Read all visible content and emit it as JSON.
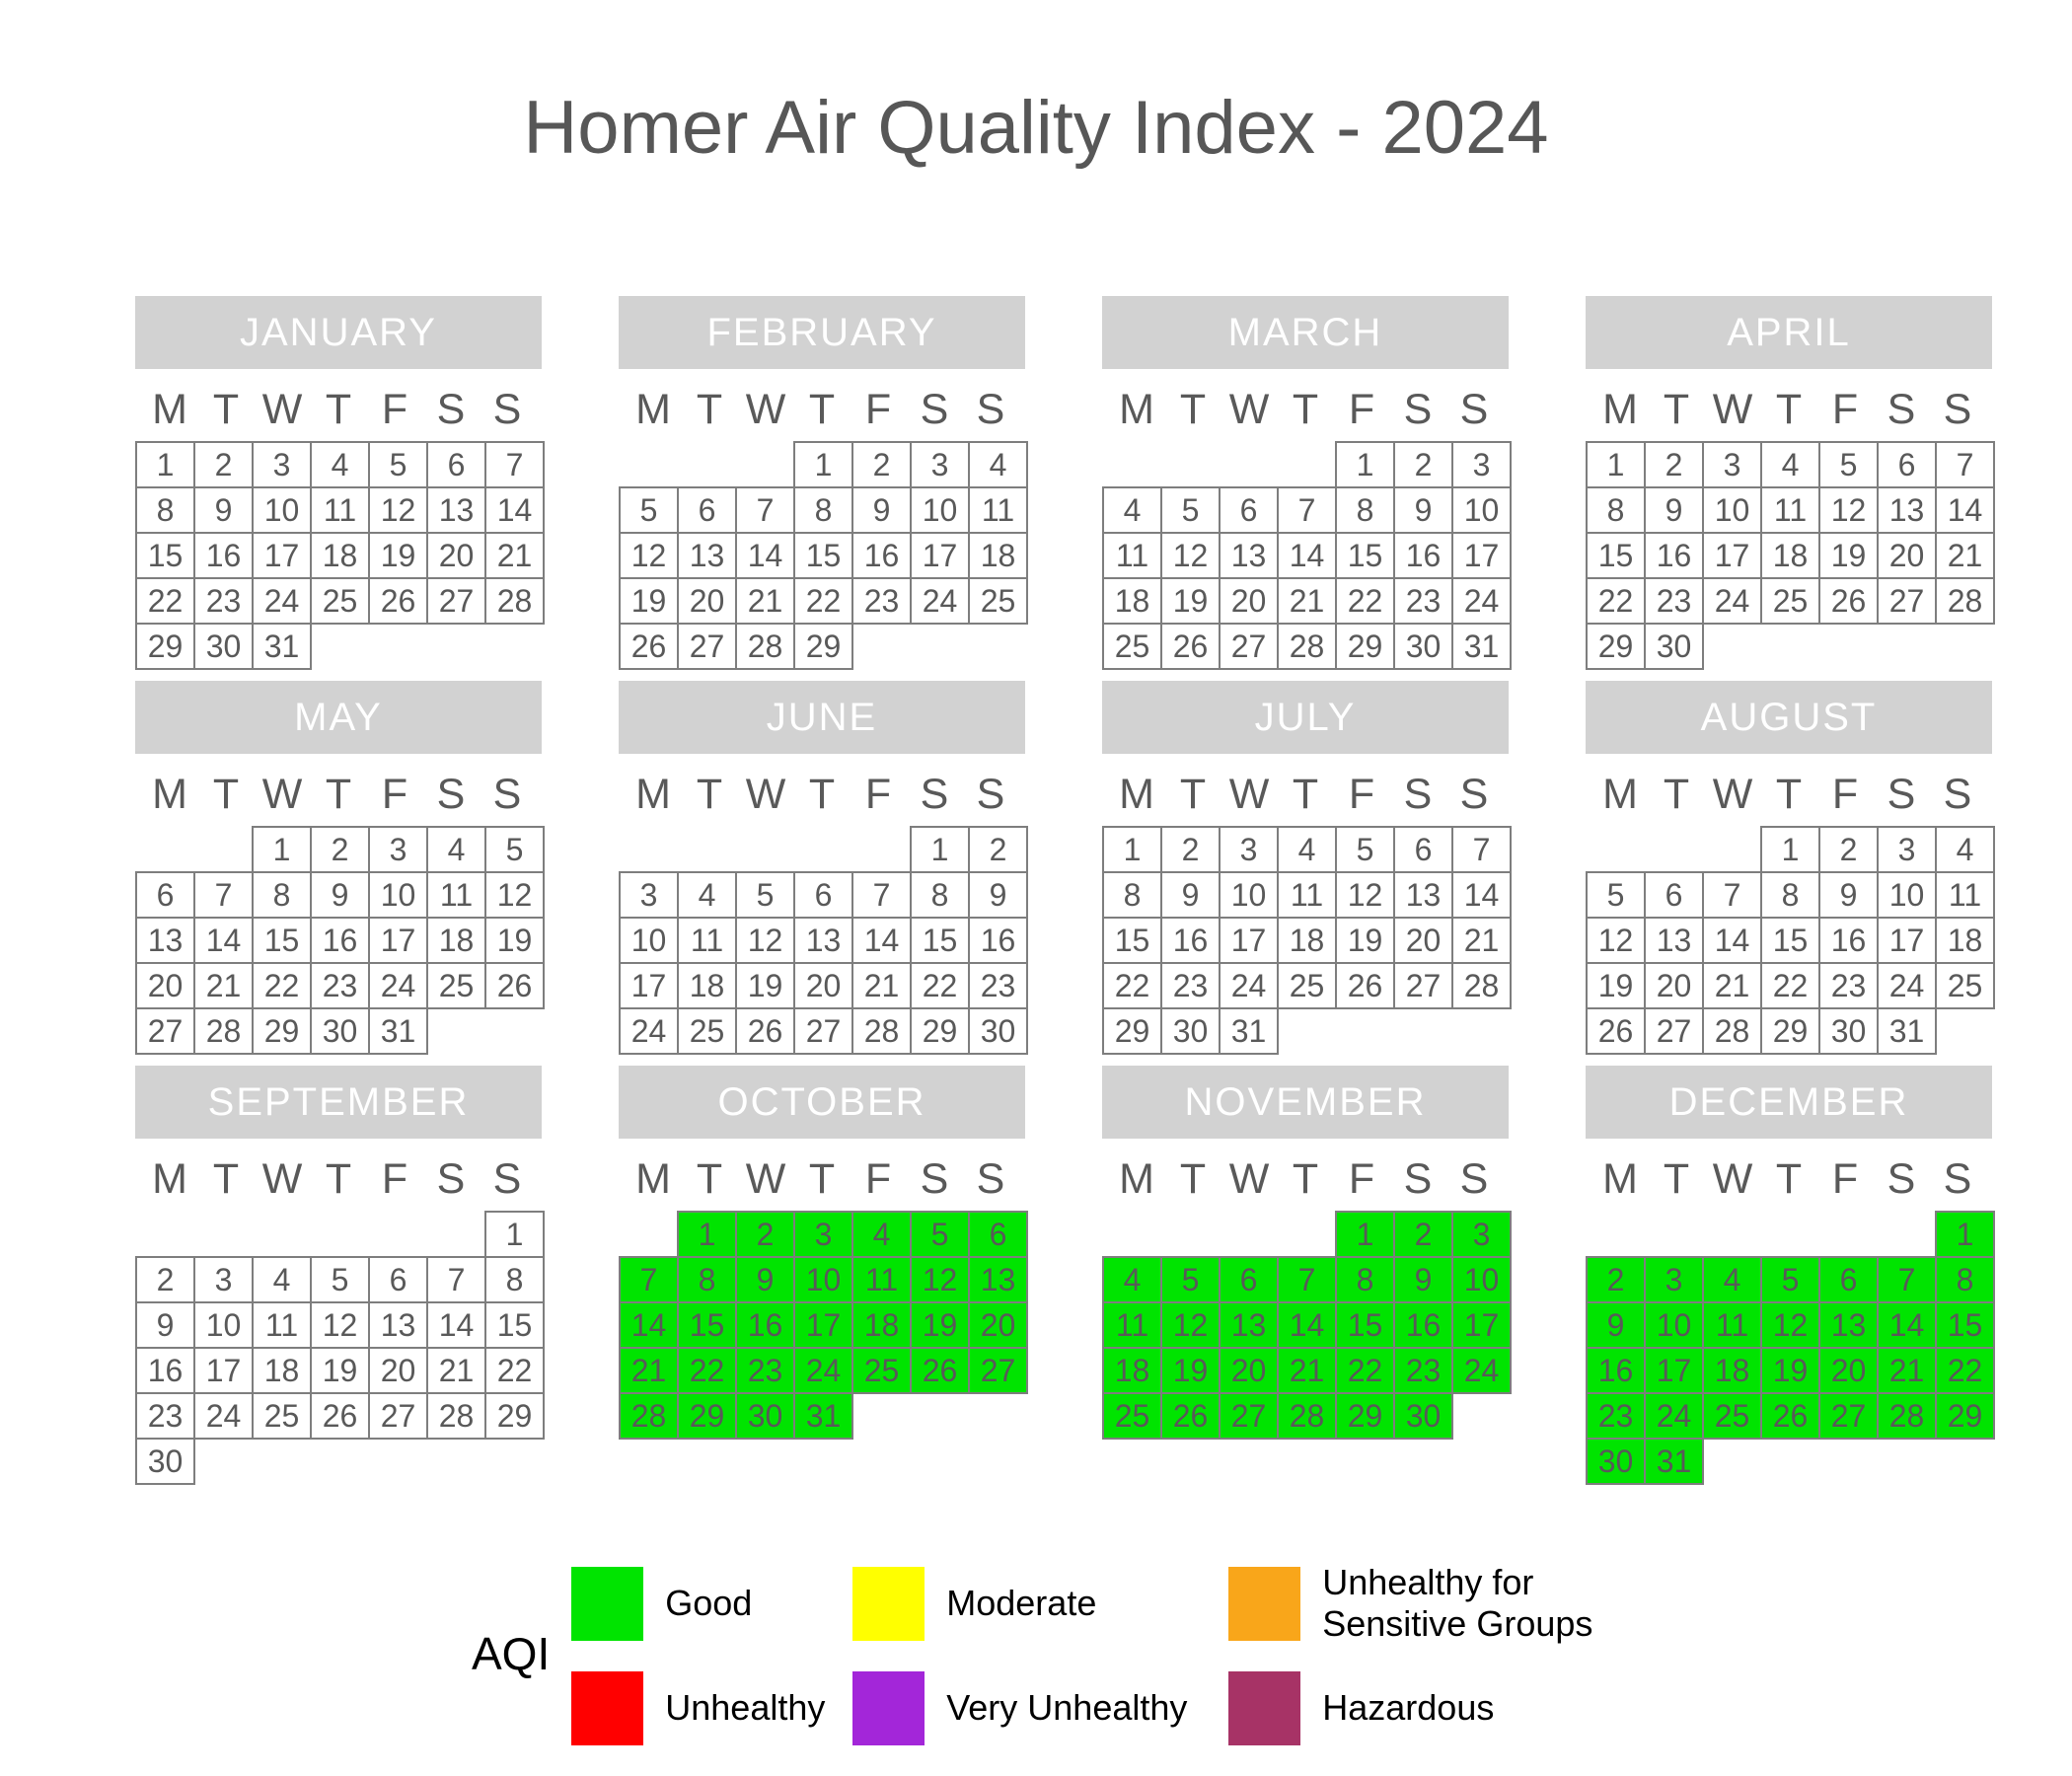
{
  "title": "Homer Air Quality Index - 2024",
  "weekdays": [
    "M",
    "T",
    "W",
    "T",
    "F",
    "S",
    "S"
  ],
  "aqi_colors": {
    "Good": "#00E400",
    "Moderate": "#FFFF00",
    "Unhealthy for Sensitive Groups": "#F9A61A",
    "Unhealthy": "#FF0000",
    "Very Unhealthy": "#A326D9",
    "Hazardous": "#A73366"
  },
  "months": [
    {
      "name": "JANUARY",
      "aqi": null,
      "weeks": [
        [
          1,
          2,
          3,
          4,
          5,
          6,
          7
        ],
        [
          8,
          9,
          10,
          11,
          12,
          13,
          14
        ],
        [
          15,
          16,
          17,
          18,
          19,
          20,
          21
        ],
        [
          22,
          23,
          24,
          25,
          26,
          27,
          28
        ],
        [
          29,
          30,
          31,
          0,
          0,
          0,
          0
        ]
      ]
    },
    {
      "name": "FEBRUARY",
      "aqi": null,
      "weeks": [
        [
          0,
          0,
          0,
          1,
          2,
          3,
          4
        ],
        [
          5,
          6,
          7,
          8,
          9,
          10,
          11
        ],
        [
          12,
          13,
          14,
          15,
          16,
          17,
          18
        ],
        [
          19,
          20,
          21,
          22,
          23,
          24,
          25
        ],
        [
          26,
          27,
          28,
          29,
          0,
          0,
          0
        ]
      ]
    },
    {
      "name": "MARCH",
      "aqi": null,
      "weeks": [
        [
          0,
          0,
          0,
          0,
          1,
          2,
          3
        ],
        [
          4,
          5,
          6,
          7,
          8,
          9,
          10
        ],
        [
          11,
          12,
          13,
          14,
          15,
          16,
          17
        ],
        [
          18,
          19,
          20,
          21,
          22,
          23,
          24
        ],
        [
          25,
          26,
          27,
          28,
          29,
          30,
          31
        ]
      ]
    },
    {
      "name": "APRIL",
      "aqi": null,
      "weeks": [
        [
          1,
          2,
          3,
          4,
          5,
          6,
          7
        ],
        [
          8,
          9,
          10,
          11,
          12,
          13,
          14
        ],
        [
          15,
          16,
          17,
          18,
          19,
          20,
          21
        ],
        [
          22,
          23,
          24,
          25,
          26,
          27,
          28
        ],
        [
          29,
          30,
          0,
          0,
          0,
          0,
          0
        ]
      ]
    },
    {
      "name": "MAY",
      "aqi": null,
      "weeks": [
        [
          0,
          0,
          1,
          2,
          3,
          4,
          5
        ],
        [
          6,
          7,
          8,
          9,
          10,
          11,
          12
        ],
        [
          13,
          14,
          15,
          16,
          17,
          18,
          19
        ],
        [
          20,
          21,
          22,
          23,
          24,
          25,
          26
        ],
        [
          27,
          28,
          29,
          30,
          31,
          0,
          0
        ]
      ]
    },
    {
      "name": "JUNE",
      "aqi": null,
      "weeks": [
        [
          0,
          0,
          0,
          0,
          0,
          1,
          2
        ],
        [
          3,
          4,
          5,
          6,
          7,
          8,
          9
        ],
        [
          10,
          11,
          12,
          13,
          14,
          15,
          16
        ],
        [
          17,
          18,
          19,
          20,
          21,
          22,
          23
        ],
        [
          24,
          25,
          26,
          27,
          28,
          29,
          30
        ]
      ]
    },
    {
      "name": "JULY",
      "aqi": null,
      "weeks": [
        [
          1,
          2,
          3,
          4,
          5,
          6,
          7
        ],
        [
          8,
          9,
          10,
          11,
          12,
          13,
          14
        ],
        [
          15,
          16,
          17,
          18,
          19,
          20,
          21
        ],
        [
          22,
          23,
          24,
          25,
          26,
          27,
          28
        ],
        [
          29,
          30,
          31,
          0,
          0,
          0,
          0
        ]
      ]
    },
    {
      "name": "AUGUST",
      "aqi": null,
      "weeks": [
        [
          0,
          0,
          0,
          1,
          2,
          3,
          4
        ],
        [
          5,
          6,
          7,
          8,
          9,
          10,
          11
        ],
        [
          12,
          13,
          14,
          15,
          16,
          17,
          18
        ],
        [
          19,
          20,
          21,
          22,
          23,
          24,
          25
        ],
        [
          26,
          27,
          28,
          29,
          30,
          31,
          0
        ]
      ]
    },
    {
      "name": "SEPTEMBER",
      "aqi": null,
      "weeks": [
        [
          0,
          0,
          0,
          0,
          0,
          0,
          1
        ],
        [
          2,
          3,
          4,
          5,
          6,
          7,
          8
        ],
        [
          9,
          10,
          11,
          12,
          13,
          14,
          15
        ],
        [
          16,
          17,
          18,
          19,
          20,
          21,
          22
        ],
        [
          23,
          24,
          25,
          26,
          27,
          28,
          29
        ],
        [
          30,
          0,
          0,
          0,
          0,
          0,
          0
        ]
      ]
    },
    {
      "name": "OCTOBER",
      "aqi": "Good",
      "weeks": [
        [
          0,
          1,
          2,
          3,
          4,
          5,
          6
        ],
        [
          7,
          8,
          9,
          10,
          11,
          12,
          13
        ],
        [
          14,
          15,
          16,
          17,
          18,
          19,
          20
        ],
        [
          21,
          22,
          23,
          24,
          25,
          26,
          27
        ],
        [
          28,
          29,
          30,
          31,
          0,
          0,
          0
        ]
      ]
    },
    {
      "name": "NOVEMBER",
      "aqi": "Good",
      "weeks": [
        [
          0,
          0,
          0,
          0,
          1,
          2,
          3
        ],
        [
          4,
          5,
          6,
          7,
          8,
          9,
          10
        ],
        [
          11,
          12,
          13,
          14,
          15,
          16,
          17
        ],
        [
          18,
          19,
          20,
          21,
          22,
          23,
          24
        ],
        [
          25,
          26,
          27,
          28,
          29,
          30,
          0
        ]
      ]
    },
    {
      "name": "DECEMBER",
      "aqi": "Good",
      "weeks": [
        [
          0,
          0,
          0,
          0,
          0,
          0,
          1
        ],
        [
          2,
          3,
          4,
          5,
          6,
          7,
          8
        ],
        [
          9,
          10,
          11,
          12,
          13,
          14,
          15
        ],
        [
          16,
          17,
          18,
          19,
          20,
          21,
          22
        ],
        [
          23,
          24,
          25,
          26,
          27,
          28,
          29
        ],
        [
          30,
          31,
          0,
          0,
          0,
          0,
          0
        ]
      ]
    }
  ],
  "legend": {
    "label": "AQI",
    "items": [
      {
        "label": "Good",
        "color": "#00E400"
      },
      {
        "label": "Moderate",
        "color": "#FFFF00"
      },
      {
        "label": "Unhealthy for Sensitive Groups",
        "color": "#F9A61A"
      },
      {
        "label": "Unhealthy",
        "color": "#FF0000"
      },
      {
        "label": "Very Unhealthy",
        "color": "#A326D9"
      },
      {
        "label": "Hazardous",
        "color": "#A73366"
      }
    ]
  },
  "chart_data": {
    "type": "heatmap",
    "subtype": "calendar-year-aqi",
    "title": "Homer Air Quality Index - 2024",
    "year": 2024,
    "week_start": "Monday",
    "legend_position": "bottom",
    "legend_title": "AQI",
    "legend": [
      {
        "label": "Good",
        "color": "#00E400"
      },
      {
        "label": "Moderate",
        "color": "#FFFF00"
      },
      {
        "label": "Unhealthy for Sensitive Groups",
        "color": "#F9A61A"
      },
      {
        "label": "Unhealthy",
        "color": "#FF0000"
      },
      {
        "label": "Very Unhealthy",
        "color": "#A326D9"
      },
      {
        "label": "Hazardous",
        "color": "#A73366"
      }
    ],
    "values": [
      {
        "month": "January",
        "aqi": null
      },
      {
        "month": "February",
        "aqi": null
      },
      {
        "month": "March",
        "aqi": null
      },
      {
        "month": "April",
        "aqi": null
      },
      {
        "month": "May",
        "aqi": null
      },
      {
        "month": "June",
        "aqi": null
      },
      {
        "month": "July",
        "aqi": null
      },
      {
        "month": "August",
        "aqi": null
      },
      {
        "month": "September",
        "aqi": null
      },
      {
        "month": "October",
        "aqi": "Good",
        "days": "1-31"
      },
      {
        "month": "November",
        "aqi": "Good",
        "days": "1-30"
      },
      {
        "month": "December",
        "aqi": "Good",
        "days": "1-31"
      }
    ]
  }
}
